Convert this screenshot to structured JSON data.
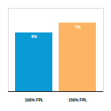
{
  "chart_data": {
    "type": "bar",
    "categories": [
      "100% FPL",
      "150% FPL"
    ],
    "values": [
      6,
      7
    ],
    "value_labels": [
      "6%",
      "7%"
    ],
    "colors": [
      "#0a9ad6",
      "#fdb462"
    ],
    "ylim": [
      0,
      8.5
    ],
    "yticks": [],
    "data_labels": true,
    "tick_labels": "x"
  }
}
